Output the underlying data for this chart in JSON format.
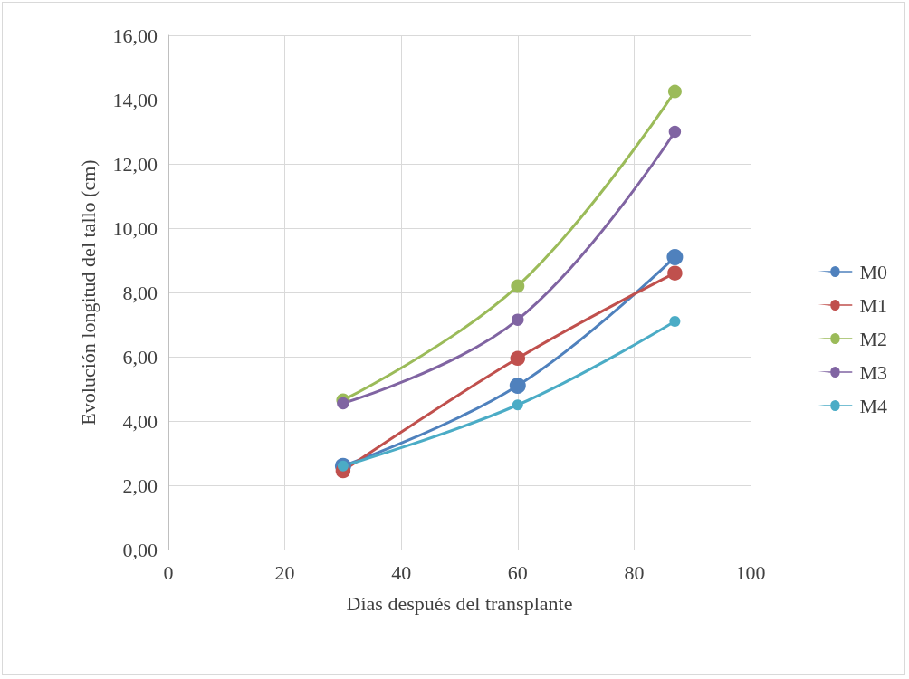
{
  "chart_data": {
    "type": "line",
    "xlabel": "Días después del transplante",
    "ylabel": "Evolución longitud del tallo (cm)",
    "x": [
      30,
      60,
      87
    ],
    "series": [
      {
        "name": "M0",
        "color": "#4f81bd",
        "values": [
          2.6,
          5.1,
          9.1
        ]
      },
      {
        "name": "M1",
        "color": "#c0504d",
        "values": [
          2.45,
          5.95,
          8.6
        ]
      },
      {
        "name": "M2",
        "color": "#9bbb59",
        "values": [
          4.65,
          8.2,
          14.25
        ]
      },
      {
        "name": "M3",
        "color": "#8064a2",
        "values": [
          4.55,
          7.15,
          13.0
        ]
      },
      {
        "name": "M4",
        "color": "#4bacc6",
        "values": [
          2.6,
          4.5,
          7.1
        ]
      }
    ],
    "xlim": [
      0,
      100
    ],
    "xticks": [
      0,
      20,
      40,
      60,
      80,
      100
    ],
    "ylim": [
      0,
      16
    ],
    "yticks": [
      {
        "value": 0,
        "label": "0,00"
      },
      {
        "value": 2,
        "label": "2,00"
      },
      {
        "value": 4,
        "label": "4,00"
      },
      {
        "value": 6,
        "label": "6,00"
      },
      {
        "value": 8,
        "label": "8,00"
      },
      {
        "value": 10,
        "label": "10,00"
      },
      {
        "value": 12,
        "label": "12,00"
      },
      {
        "value": 14,
        "label": "14,00"
      },
      {
        "value": 16,
        "label": "16,00"
      }
    ],
    "grid": true,
    "legend": "right",
    "marker": "circle",
    "line_style": "solid"
  }
}
